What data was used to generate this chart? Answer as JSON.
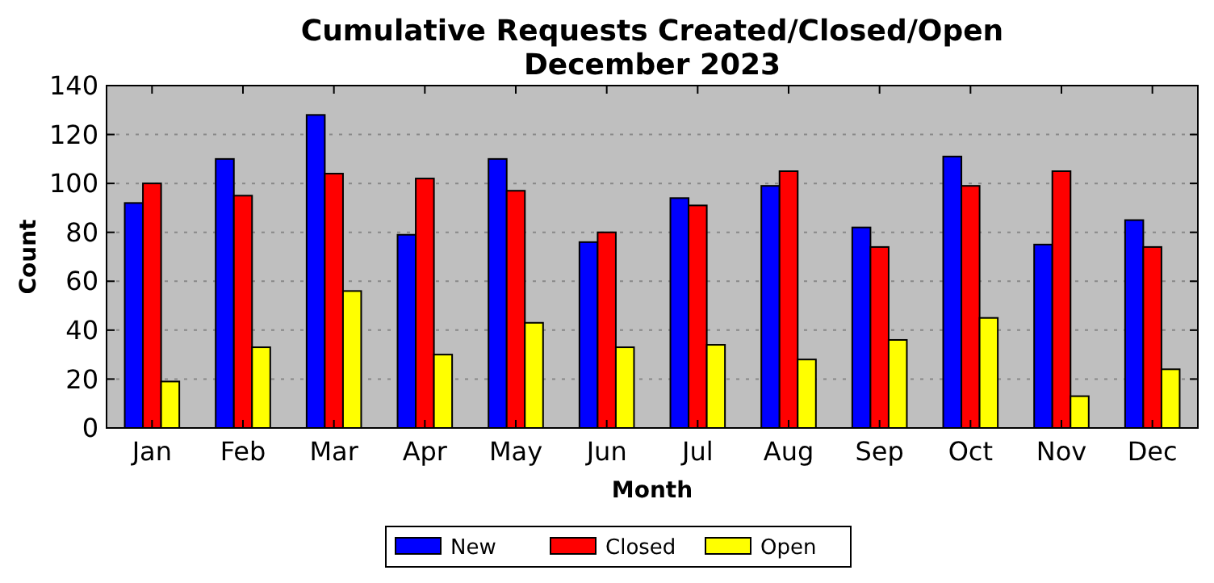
{
  "chart_data": {
    "type": "bar",
    "title": "Cumulative Requests Created/Closed/Open\nDecember 2023",
    "xlabel": "Month",
    "ylabel": "Count",
    "categories": [
      "Jan",
      "Feb",
      "Mar",
      "Apr",
      "May",
      "Jun",
      "Jul",
      "Aug",
      "Sep",
      "Oct",
      "Nov",
      "Dec"
    ],
    "series": [
      {
        "name": "New",
        "color": "#0000ff",
        "values": [
          92,
          110,
          128,
          79,
          110,
          76,
          94,
          99,
          82,
          111,
          75,
          85
        ]
      },
      {
        "name": "Closed",
        "color": "#ff0000",
        "values": [
          100,
          95,
          104,
          102,
          97,
          80,
          91,
          105,
          74,
          99,
          105,
          74
        ]
      },
      {
        "name": "Open",
        "color": "#ffff00",
        "values": [
          19,
          33,
          56,
          30,
          43,
          33,
          34,
          28,
          36,
          45,
          13,
          24
        ]
      }
    ],
    "ylim": [
      0,
      140
    ],
    "yticks": [
      0,
      20,
      40,
      60,
      80,
      100,
      120,
      140
    ],
    "grid": "y",
    "legend": "bottom"
  }
}
